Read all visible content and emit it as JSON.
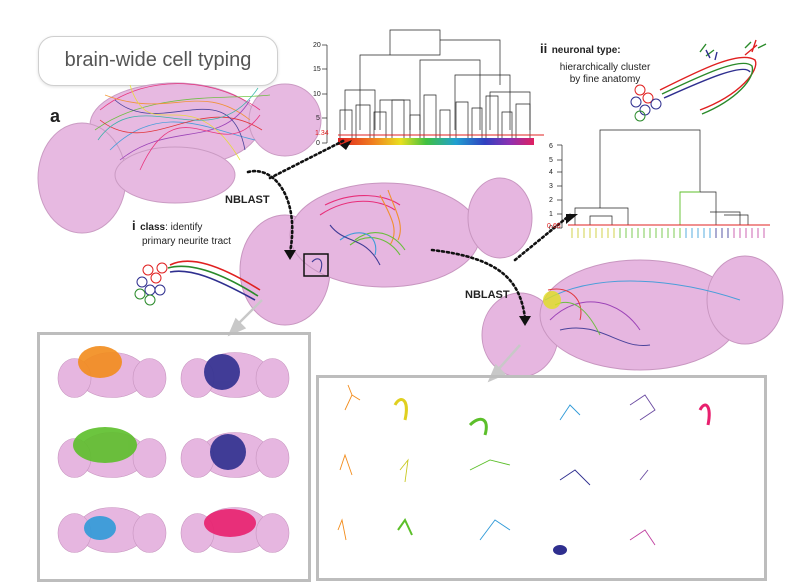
{
  "title": "brain-wide cell typing",
  "panel_letter": "a",
  "step_i": {
    "num": "i",
    "bold": "class",
    "text": ": identify",
    "text2": "primary neurite tract"
  },
  "step_ii": {
    "num": "ii",
    "bold": "neuronal type",
    "text": ":",
    "text2": "hierarchically cluster",
    "text3": "by fine anatomy"
  },
  "arrow_label_1": "NBLAST",
  "arrow_label_2": "NBLAST",
  "dendro_big": {
    "yticks": [
      "0",
      "5",
      "10",
      "15",
      "20"
    ],
    "threshold": "1.34"
  },
  "dendro_small": {
    "yticks": [
      "0",
      "1",
      "2",
      "3",
      "4",
      "5",
      "6"
    ],
    "threshold": "0.65"
  },
  "colors": {
    "brain": "#e6b6e0",
    "brain_stroke": "#c896c0",
    "orange": "#f28c1c",
    "navy": "#2f2f8f",
    "green": "#5cbf2a",
    "blue": "#2f9ad8",
    "pink": "#e8206e",
    "red_threshold": "#e02020"
  }
}
